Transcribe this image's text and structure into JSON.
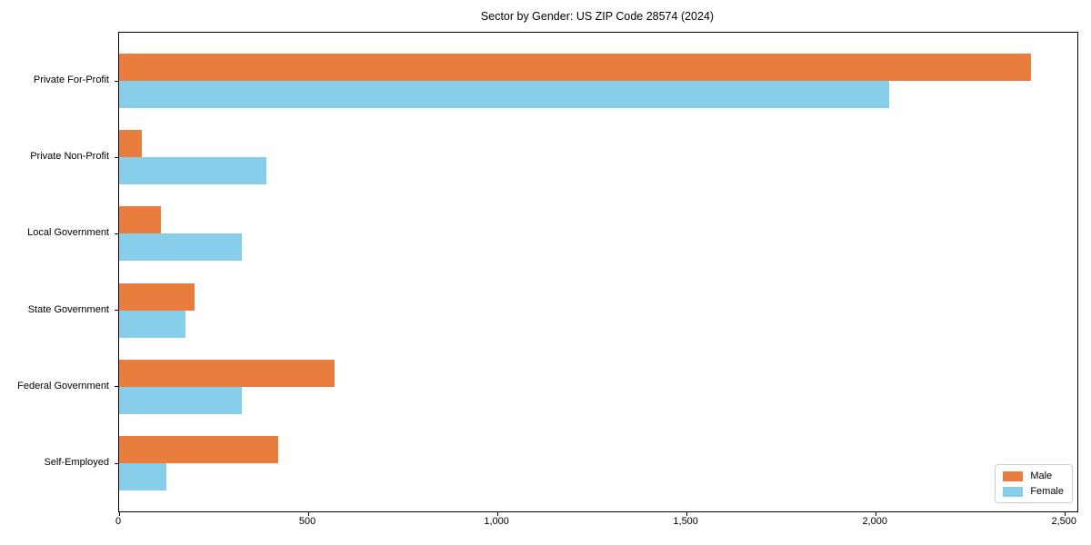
{
  "chart_data": {
    "type": "bar",
    "orientation": "horizontal",
    "title": "Sector by Gender: US ZIP Code 28574 (2024)",
    "xlabel": "",
    "ylabel": "",
    "categories": [
      "Private For-Profit",
      "Private Non-Profit",
      "Local Government",
      "State Government",
      "Federal Government",
      "Self-Employed"
    ],
    "series": [
      {
        "name": "Male",
        "color": "#e87d3d",
        "values": [
          2410,
          60,
          110,
          200,
          570,
          420
        ]
      },
      {
        "name": "Female",
        "color": "#87ceeb",
        "values": [
          2035,
          390,
          325,
          175,
          325,
          125
        ]
      }
    ],
    "xlim": [
      0,
      2533
    ],
    "xticks": [
      0,
      500,
      1000,
      1500,
      2000,
      2500
    ],
    "xtick_labels": [
      "0",
      "500",
      "1,000",
      "1,500",
      "2,000",
      "2,500"
    ],
    "grid": false,
    "legend": {
      "position": "lower right",
      "items": [
        {
          "label": "Male",
          "color": "#e87d3d"
        },
        {
          "label": "Female",
          "color": "#87ceeb"
        }
      ]
    }
  }
}
